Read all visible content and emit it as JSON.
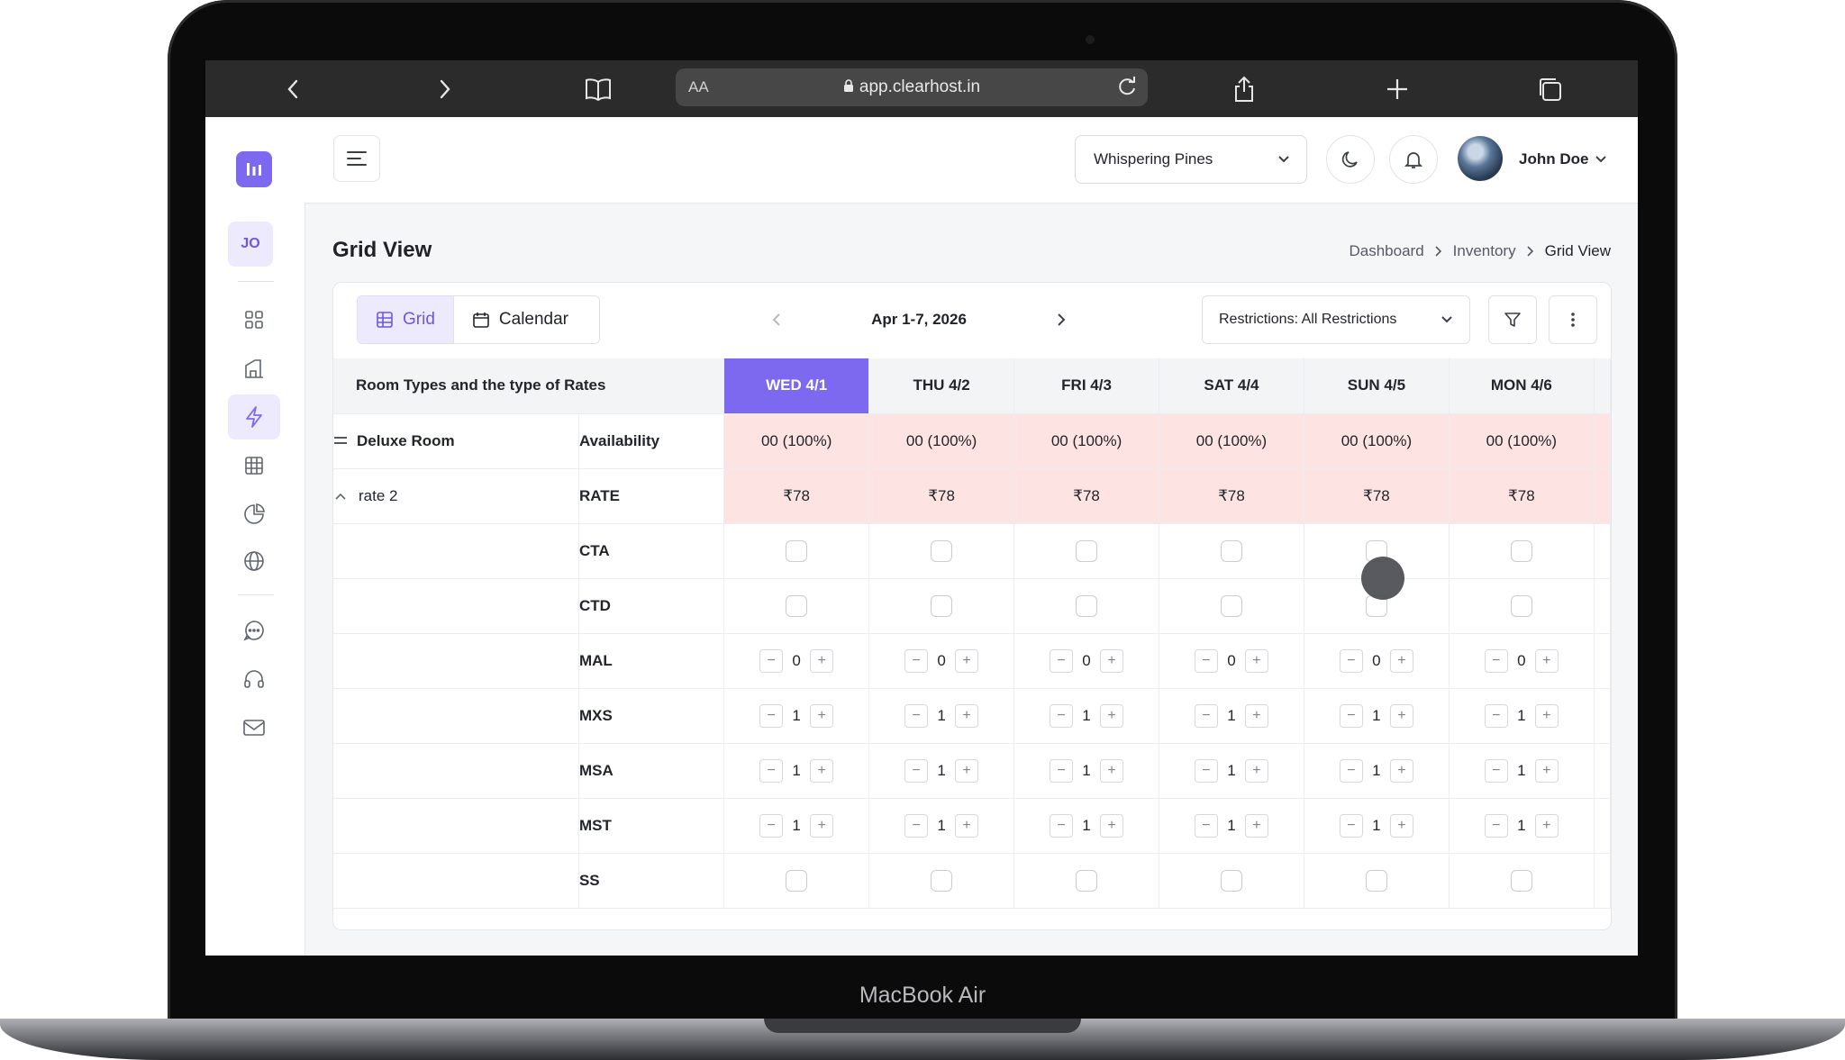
{
  "browser": {
    "url_prefix": "AA",
    "url": "app.clearhost.in"
  },
  "device": {
    "label": "MacBook Air"
  },
  "rail": {
    "user_initials": "JO",
    "icons": [
      "grid-icon",
      "building-icon",
      "bolt-icon",
      "table-icon",
      "pie-chart-icon",
      "globe-icon",
      "chat-icon",
      "headset-icon",
      "mail-icon"
    ]
  },
  "header": {
    "property": "Whispering Pines",
    "user_name": "John Doe"
  },
  "page": {
    "title": "Grid View",
    "breadcrumb": [
      "Dashboard",
      "Inventory",
      "Grid View"
    ]
  },
  "toolbar": {
    "view_grid": "Grid",
    "view_calendar": "Calendar",
    "date_range": "Apr 1-7, 2026",
    "restrictions": "Restrictions: All Restrictions"
  },
  "grid": {
    "header_label": "Room Types and the type of Rates",
    "columns": [
      "WED 4/1",
      "THU 4/2",
      "FRI 4/3",
      "SAT 4/4",
      "SUN 4/5",
      "MON 4/6"
    ],
    "selected_column": "WED 4/1",
    "room_name": "Deluxe Room",
    "rate_name": "rate 2",
    "rows": [
      {
        "label": "Availability",
        "kind": "text",
        "values": [
          "00 (100%)",
          "00 (100%)",
          "00 (100%)",
          "00 (100%)",
          "00 (100%)",
          "00 (100%)"
        ]
      },
      {
        "label": "RATE",
        "kind": "text",
        "values": [
          "₹78",
          "₹78",
          "₹78",
          "₹78",
          "₹78",
          "₹78"
        ]
      },
      {
        "label": "CTA",
        "kind": "check",
        "values": [
          false,
          false,
          false,
          false,
          false,
          false
        ]
      },
      {
        "label": "CTD",
        "kind": "check",
        "values": [
          false,
          false,
          false,
          false,
          false,
          false
        ]
      },
      {
        "label": "MAL",
        "kind": "stepper",
        "values": [
          "0",
          "0",
          "0",
          "0",
          "0",
          "0"
        ]
      },
      {
        "label": "MXS",
        "kind": "stepper",
        "values": [
          "1",
          "1",
          "1",
          "1",
          "1",
          "1"
        ]
      },
      {
        "label": "MSA",
        "kind": "stepper",
        "values": [
          "1",
          "1",
          "1",
          "1",
          "1",
          "1"
        ]
      },
      {
        "label": "MST",
        "kind": "stepper",
        "values": [
          "1",
          "1",
          "1",
          "1",
          "1",
          "1"
        ]
      },
      {
        "label": "SS",
        "kind": "check",
        "values": [
          false,
          false,
          false,
          false,
          false,
          false
        ]
      }
    ],
    "stepper_minus": "−",
    "stepper_plus": "+"
  },
  "colors": {
    "accent": "#7c69ef",
    "accent_soft": "#eeeafd",
    "highlight_row": "#fde3e1"
  }
}
